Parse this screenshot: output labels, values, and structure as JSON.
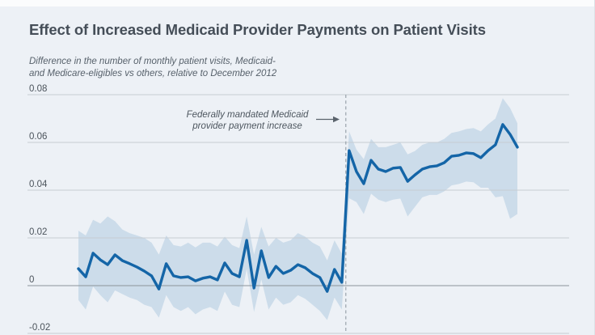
{
  "page": {
    "background": "#edf1f6"
  },
  "chart_data": {
    "type": "line",
    "title": "Effect of Increased Medicaid Provider Payments on Patient Visits",
    "subtitle_lines": [
      "Difference in the number of monthly patient visits, Medicaid-",
      "and Medicare-eligibles vs others, relative to December 2012"
    ],
    "annotation": {
      "lines": [
        "Federally mandated Medicaid",
        "provider payment increase"
      ]
    },
    "x_unit": "month index (monthly observations, policy change at dashed line)",
    "yticks": [
      0.08,
      0.06,
      0.04,
      0.02,
      0,
      -0.02
    ],
    "ytick_labels": [
      "0.08",
      "0.06",
      "0.04",
      "0.02",
      "0",
      "-0.02"
    ],
    "ylim": [
      -0.02,
      0.08
    ],
    "grid": true,
    "legend": "none",
    "vline_at_point": 36.55,
    "series": [
      {
        "name": "Difference in monthly patient visits",
        "values": [
          0.0071,
          0.0037,
          0.0136,
          0.0108,
          0.0088,
          0.0129,
          0.0105,
          0.0092,
          0.0078,
          0.0061,
          0.0041,
          -0.0014,
          0.0092,
          0.0041,
          0.0034,
          0.0037,
          0.002,
          0.0031,
          0.0037,
          0.0024,
          0.0095,
          0.0051,
          0.0037,
          0.019,
          -0.001,
          0.0146,
          0.0034,
          0.0081,
          0.0051,
          0.0064,
          0.0088,
          0.0075,
          0.0051,
          0.0034,
          -0.0024,
          0.0068,
          0.0014,
          0.0566,
          0.0478,
          0.0427,
          0.0525,
          0.0488,
          0.0478,
          0.0492,
          0.0495,
          0.0437,
          0.0464,
          0.0488,
          0.0498,
          0.0502,
          0.0515,
          0.0542,
          0.0546,
          0.0556,
          0.0553,
          0.0536,
          0.0566,
          0.059,
          0.0675,
          0.0634,
          0.058
        ]
      }
    ],
    "band": {
      "name": "confidence interval",
      "upper": [
        0.023,
        0.021,
        0.0276,
        0.026,
        0.029,
        0.027,
        0.0235,
        0.022,
        0.021,
        0.02,
        0.018,
        0.013,
        0.021,
        0.017,
        0.0164,
        0.018,
        0.016,
        0.018,
        0.018,
        0.0164,
        0.0205,
        0.017,
        0.0157,
        0.029,
        0.013,
        0.0246,
        0.0164,
        0.02,
        0.018,
        0.019,
        0.022,
        0.0205,
        0.018,
        0.0164,
        0.0106,
        0.019,
        0.0134,
        0.0646,
        0.057,
        0.053,
        0.0615,
        0.058,
        0.058,
        0.059,
        0.06,
        0.055,
        0.0564,
        0.059,
        0.06,
        0.06,
        0.0615,
        0.064,
        0.0646,
        0.0656,
        0.066,
        0.0646,
        0.0676,
        0.07,
        0.0785,
        0.0744,
        0.068
      ],
      "lower": [
        -0.006,
        -0.01,
        -0.0004,
        -0.004,
        -0.007,
        -0.002,
        -0.0035,
        -0.005,
        -0.006,
        -0.008,
        -0.009,
        -0.0134,
        -0.004,
        -0.009,
        -0.0106,
        -0.009,
        -0.012,
        -0.01,
        -0.009,
        -0.0106,
        -0.0025,
        -0.008,
        -0.009,
        0.007,
        -0.011,
        0.0026,
        -0.01,
        -0.005,
        -0.008,
        -0.007,
        -0.004,
        -0.0055,
        -0.008,
        -0.0106,
        -0.0144,
        -0.005,
        -0.01,
        0.0366,
        0.035,
        0.03,
        0.0385,
        0.036,
        0.035,
        0.036,
        0.0365,
        0.029,
        0.033,
        0.037,
        0.038,
        0.038,
        0.0395,
        0.042,
        0.0426,
        0.0436,
        0.0433,
        0.041,
        0.041,
        0.037,
        0.0375,
        0.028,
        0.03
      ]
    },
    "colors": {
      "line": "#1465a7",
      "band": "#c5d8e8",
      "grid": "#c6cdd3",
      "zero_line": "#8b939b",
      "dashed": "#99a3ab",
      "arrow": "#5a636c"
    }
  }
}
